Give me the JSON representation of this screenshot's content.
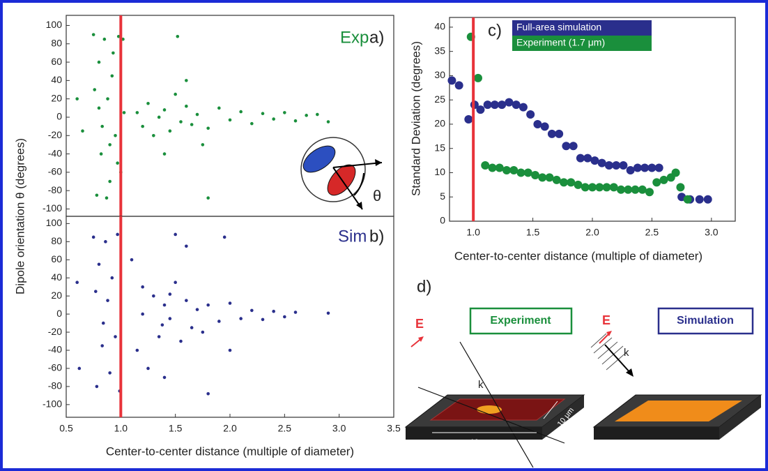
{
  "chart_data": [
    {
      "type": "scatter",
      "label": "Exp",
      "panel": "a)",
      "annotation": "θ",
      "ylabel": "Dipole orientation θ (degrees)",
      "color": "#1a8f3c",
      "vline": 1.0,
      "vline_color": "#e8333a",
      "xlim": [
        0.5,
        3.5
      ],
      "ylim": [
        -108,
        111
      ],
      "yticks": [
        -100,
        -80,
        -60,
        -40,
        -20,
        0,
        20,
        40,
        60,
        80,
        100
      ],
      "x": [
        0.75,
        0.78,
        0.8,
        0.82,
        0.85,
        0.88,
        0.9,
        0.92,
        0.95,
        0.98,
        1.0,
        1.03,
        0.76,
        0.83,
        0.87,
        0.93,
        0.97,
        0.8,
        0.9,
        1.02,
        1.15,
        1.2,
        1.25,
        1.3,
        1.35,
        1.4,
        1.45,
        1.5,
        1.55,
        1.6,
        1.65,
        1.7,
        1.8,
        1.9,
        2.0,
        2.1,
        2.2,
        2.3,
        2.4,
        2.5,
        2.6,
        2.7,
        2.8,
        1.4,
        1.6,
        1.75,
        1.52,
        1.8,
        0.6,
        0.65,
        2.9
      ],
      "values": [
        90,
        -85,
        60,
        -40,
        85,
        20,
        -70,
        45,
        -20,
        88,
        -60,
        5,
        30,
        -10,
        -88,
        70,
        -50,
        10,
        -30,
        85,
        5,
        -10,
        15,
        -20,
        0,
        8,
        -15,
        25,
        -5,
        12,
        -8,
        3,
        -12,
        10,
        -3,
        6,
        -7,
        4,
        -2,
        5,
        -4,
        2,
        3,
        -40,
        40,
        -30,
        88,
        -88,
        20,
        -15,
        -5
      ]
    },
    {
      "type": "scatter",
      "label": "Sim",
      "panel": "b)",
      "xlabel": "Center-to-center distance (multiple of diameter)",
      "color": "#2a2f8c",
      "vline": 1.0,
      "vline_color": "#e8333a",
      "xlim": [
        0.5,
        3.5
      ],
      "ylim": [
        -114,
        108
      ],
      "yticks": [
        -100,
        -80,
        -60,
        -40,
        -20,
        0,
        20,
        40,
        60,
        80,
        100
      ],
      "xticks": [
        0.5,
        {
          "value": 1,
          "label": "1.0"
        },
        1.5,
        {
          "value": 2,
          "label": "2.0"
        },
        2.5,
        {
          "value": 3,
          "label": "3.0"
        },
        3.5
      ],
      "x": [
        0.75,
        0.78,
        0.8,
        0.83,
        0.86,
        0.88,
        0.9,
        0.92,
        0.95,
        0.97,
        0.99,
        0.77,
        0.84,
        0.6,
        0.62,
        1.1,
        1.15,
        1.2,
        1.25,
        1.3,
        1.35,
        1.4,
        1.45,
        1.5,
        1.55,
        1.6,
        1.65,
        1.7,
        1.75,
        1.8,
        1.9,
        2.0,
        2.1,
        2.2,
        2.3,
        2.4,
        2.5,
        2.6,
        2.9,
        1.5,
        1.8,
        1.4,
        1.6,
        2.0,
        1.95,
        1.2,
        1.38,
        1.45
      ],
      "values": [
        85,
        -80,
        55,
        -35,
        80,
        15,
        -65,
        40,
        -25,
        88,
        -85,
        25,
        -10,
        35,
        -60,
        60,
        -40,
        30,
        -60,
        20,
        -25,
        10,
        -5,
        35,
        -30,
        15,
        -15,
        5,
        -20,
        10,
        -8,
        12,
        -5,
        4,
        -6,
        3,
        -3,
        2,
        1,
        88,
        -88,
        -70,
        75,
        -40,
        85,
        0,
        -12,
        22
      ]
    },
    {
      "type": "scatter",
      "panel": "c)",
      "xlabel": "Center-to-center distance (multiple of diameter)",
      "ylabel": "Standard Deviation (degrees)",
      "vline": 1.0,
      "vline_color": "#e8333a",
      "legend": "top",
      "xlim": [
        0.8,
        3.2
      ],
      "ylim": [
        0,
        42
      ],
      "yticks": [
        0,
        5,
        10,
        15,
        20,
        25,
        30,
        35,
        40
      ],
      "xticks": [
        {
          "value": 1,
          "label": "1.0"
        },
        1.5,
        {
          "value": 2,
          "label": "2.0"
        },
        2.5,
        {
          "value": 3,
          "label": "3.0"
        }
      ],
      "series": [
        {
          "name": "Full-area simulation",
          "color": "#2a2f8c",
          "x": [
            0.82,
            0.88,
            0.96,
            1.01,
            1.06,
            1.12,
            1.18,
            1.24,
            1.3,
            1.36,
            1.42,
            1.48,
            1.54,
            1.6,
            1.66,
            1.72,
            1.78,
            1.84,
            1.9,
            1.96,
            2.02,
            2.08,
            2.14,
            2.2,
            2.26,
            2.32,
            2.38,
            2.44,
            2.5,
            2.56,
            2.75,
            2.82,
            2.9,
            2.97
          ],
          "values": [
            29,
            28,
            21,
            24,
            23,
            24,
            24,
            24,
            24.5,
            24,
            23.5,
            22,
            20,
            19.5,
            18,
            18,
            15.5,
            15.5,
            13,
            13,
            12.5,
            12,
            11.5,
            11.5,
            11.5,
            10.5,
            11,
            11,
            11,
            11,
            5,
            4.5,
            4.5,
            4.5
          ]
        },
        {
          "name": "Experiment (1.7 μm)",
          "color": "#1a8f3c",
          "x": [
            0.98,
            1.04,
            1.1,
            1.16,
            1.22,
            1.28,
            1.34,
            1.4,
            1.46,
            1.52,
            1.58,
            1.64,
            1.7,
            1.76,
            1.82,
            1.88,
            1.94,
            2.0,
            2.06,
            2.12,
            2.18,
            2.24,
            2.3,
            2.36,
            2.42,
            2.48,
            2.54,
            2.6,
            2.66,
            2.7,
            2.74,
            2.8
          ],
          "values": [
            38,
            29.5,
            11.5,
            11,
            11,
            10.5,
            10.5,
            10,
            10,
            9.5,
            9,
            9,
            8.5,
            8,
            8,
            7.5,
            7,
            7,
            7,
            7,
            7,
            6.5,
            6.5,
            6.5,
            6.5,
            6,
            8,
            8.5,
            9,
            10,
            7,
            4.5
          ]
        }
      ]
    }
  ],
  "diagram": {
    "panel": "d)",
    "left": {
      "title": "Experiment",
      "field": "E",
      "wave": "k",
      "width": "10 μm",
      "depth": "10 μm"
    },
    "right": {
      "title": "Simulation",
      "field": "E",
      "wave": "k"
    }
  }
}
